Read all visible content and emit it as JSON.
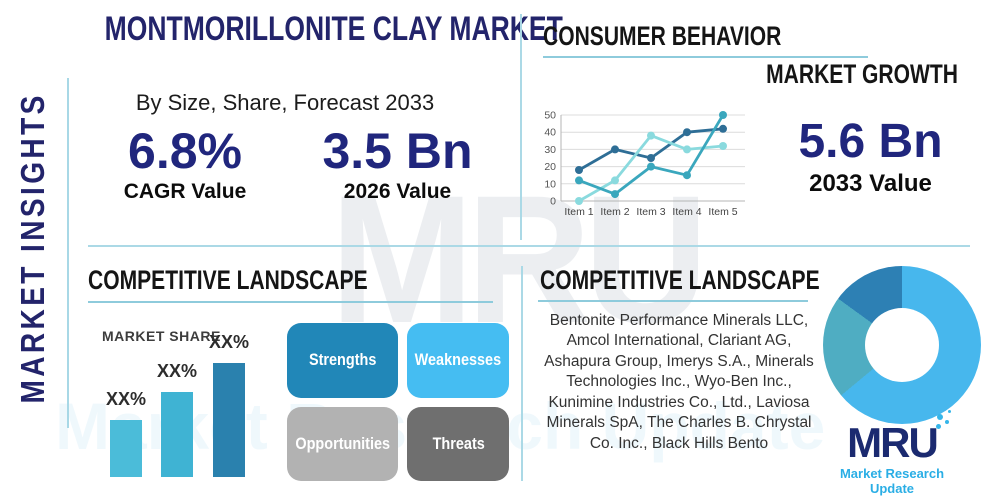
{
  "page": {
    "title": "MONTMORILLONITE CLAY MARKET",
    "subtitle": "By Size, Share, Forecast 2033"
  },
  "sidebar": {
    "label": "MARKET INSIGHTS"
  },
  "stats": {
    "cagr": {
      "value": "6.8%",
      "label": "CAGR Value"
    },
    "base": {
      "value": "3.5 Bn",
      "label": "2026 Value"
    },
    "forecast": {
      "value": "5.6 Bn",
      "label": "2033 Value"
    }
  },
  "sections": {
    "consumer": {
      "title": "CONSUMER BEHAVIOR",
      "right_title": "MARKET GROWTH"
    },
    "landscape_left": {
      "title": "COMPETITIVE LANDSCAPE",
      "chart_label": "MARKET SHARE"
    },
    "landscape_right": {
      "title": "COMPETITIVE LANDSCAPE",
      "companies_lines": [
        "Bentonite Performance Minerals LLC,",
        "Amcol International, Clariant AG,",
        "Ashapura Group, Imerys S.A., Minerals",
        "Technologies Inc., Wyo-Ben Inc.,",
        "Kunimine Industries Co., Ltd., Laviosa",
        "Minerals SpA, The Charles B. Chrystal",
        "Co. Inc., Black Hills Bento"
      ]
    }
  },
  "swot": {
    "items": [
      {
        "label": "Strengths",
        "color": "#2187b8"
      },
      {
        "label": "Weaknesses",
        "color": "#45bdf2"
      },
      {
        "label": "Opportunities",
        "color": "#b2b2b2"
      },
      {
        "label": "Threats",
        "color": "#6f6f6f"
      }
    ]
  },
  "logo": {
    "name": "MRU",
    "tagline": "Market Research Update",
    "navy": "#1b2a70",
    "cyan": "#2aaee5"
  },
  "watermark": {
    "text": "MRU",
    "subtext": "Market Research Update"
  },
  "colors": {
    "navy": "#23246b",
    "accent_line": "#a8d8e6",
    "heading": "#151515"
  },
  "chart_data": [
    {
      "type": "line",
      "title": "CONSUMER BEHAVIOR",
      "x": [
        "Item 1",
        "Item 2",
        "Item 3",
        "Item 4",
        "Item 5"
      ],
      "series": [
        {
          "name": "series-dark-blue",
          "color": "#2e6e96",
          "values": [
            18,
            30,
            25,
            40,
            42
          ]
        },
        {
          "name": "series-light-cyan",
          "color": "#8adade",
          "values": [
            0,
            12,
            38,
            30,
            32
          ]
        },
        {
          "name": "series-teal",
          "color": "#3aa7bd",
          "values": [
            12,
            4,
            20,
            15,
            50
          ]
        }
      ],
      "ylim": [
        0,
        50
      ],
      "yticks": [
        0,
        10,
        20,
        30,
        40,
        50
      ],
      "grid": true,
      "legend": "none"
    },
    {
      "type": "bar",
      "title": "MARKET SHARE",
      "bars": [
        {
          "label": "XX%",
          "value": 50,
          "color": "#4bbcd9"
        },
        {
          "label": "XX%",
          "value": 75,
          "color": "#3fb3d3"
        },
        {
          "label": "XX%",
          "value": 100,
          "color": "#2a81ae"
        }
      ]
    },
    {
      "type": "pie",
      "style": "donut",
      "segments": [
        {
          "name": "segment-light-blue",
          "color": "#47b7ed",
          "share_pct": 64
        },
        {
          "name": "segment-teal",
          "color": "#4fadc2",
          "share_pct": 21
        },
        {
          "name": "segment-dark-blue",
          "color": "#2d80b4",
          "share_pct": 15
        }
      ]
    }
  ]
}
